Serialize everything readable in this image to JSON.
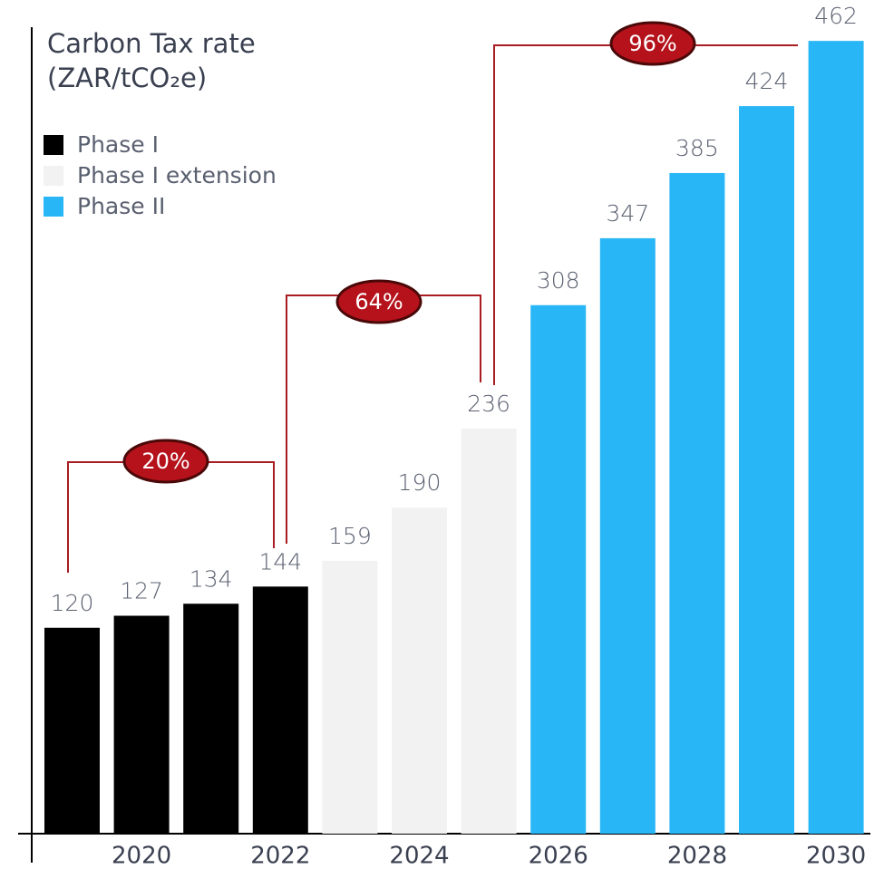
{
  "chart_data": {
    "type": "bar",
    "title": [
      "Carbon Tax rate",
      "(ZAR/tCO₂e)"
    ],
    "categories": [
      null,
      "2020",
      null,
      "2022",
      null,
      "2024",
      null,
      "2026",
      null,
      "2028",
      null,
      "2030"
    ],
    "series": [
      {
        "name": "Phase I",
        "color": "#000000",
        "values": [
          120,
          127,
          134,
          144,
          null,
          null,
          null,
          null,
          null,
          null,
          null,
          null
        ]
      },
      {
        "name": "Phase I extension",
        "color": "#f2f2f2",
        "values": [
          null,
          null,
          null,
          null,
          159,
          190,
          236,
          null,
          null,
          null,
          null,
          null
        ]
      },
      {
        "name": "Phase II",
        "color": "#29b6f6",
        "values": [
          null,
          null,
          null,
          null,
          null,
          null,
          null,
          308,
          347,
          385,
          424,
          462
        ]
      }
    ],
    "annotations": [
      "20%",
      "64%",
      "96%"
    ],
    "ylim": [
      0,
      470
    ],
    "legend": "top-left"
  }
}
